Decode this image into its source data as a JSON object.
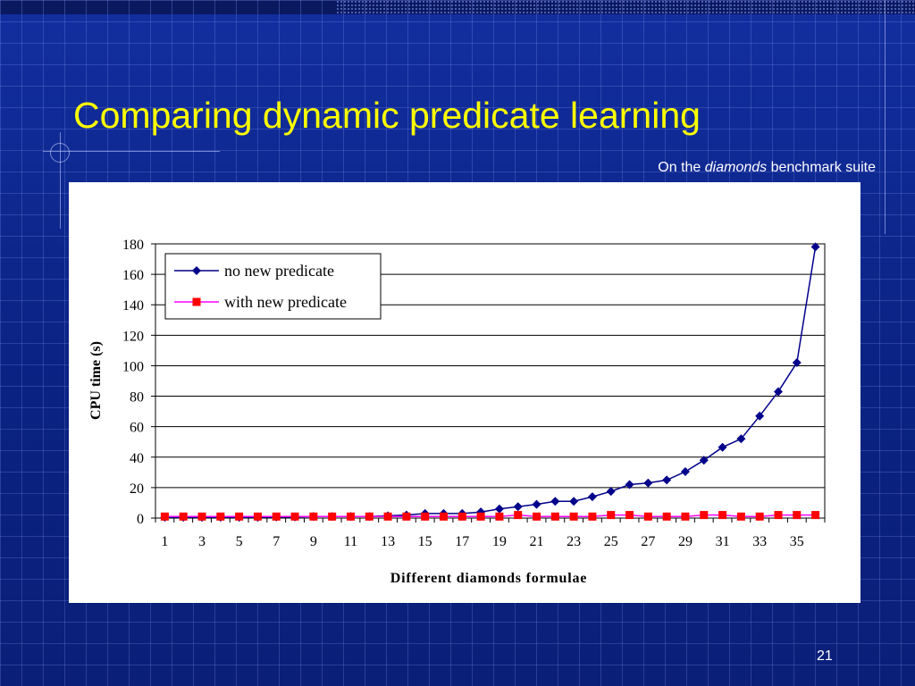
{
  "slide": {
    "title": "Comparing dynamic predicate learning",
    "subtitle_pre": "On the ",
    "subtitle_em": "diamonds",
    "subtitle_post": " benchmark suite",
    "page_number": "21"
  },
  "colors": {
    "background": "#0b2484",
    "title": "#ffff00",
    "series_1": "#00008b",
    "series_2_marker": "#ff0000",
    "series_2_line": "#ff00ff"
  },
  "chart_data": {
    "type": "line",
    "title": "",
    "xlabel": "Different diamonds formulae",
    "ylabel": "CPU time (s)",
    "ylim": [
      0,
      180
    ],
    "yticks": [
      0,
      20,
      40,
      60,
      80,
      100,
      120,
      140,
      160,
      180
    ],
    "xticks": [
      1,
      3,
      5,
      7,
      9,
      11,
      13,
      15,
      17,
      19,
      21,
      23,
      25,
      27,
      29,
      31,
      33,
      35
    ],
    "x": [
      1,
      2,
      3,
      4,
      5,
      6,
      7,
      8,
      9,
      10,
      11,
      12,
      13,
      14,
      15,
      16,
      17,
      18,
      19,
      20,
      21,
      22,
      23,
      24,
      25,
      26,
      27,
      28,
      29,
      30,
      31,
      32,
      33,
      34,
      35,
      36
    ],
    "grid": "horizontal",
    "legend": "top-left",
    "series": [
      {
        "name": "no new predicate",
        "marker": "diamond",
        "values": [
          0.5,
          0.5,
          0.5,
          0.5,
          0.5,
          0.5,
          0.7,
          0.7,
          1,
          1,
          1,
          1,
          1.5,
          2,
          3,
          3,
          3,
          4,
          6,
          7.5,
          9,
          11,
          11,
          14,
          17.5,
          22,
          23,
          25,
          30.5,
          38,
          46.5,
          52,
          67,
          83,
          102,
          178
        ]
      },
      {
        "name": "with new predicate",
        "marker": "square",
        "values": [
          1,
          1,
          1,
          1,
          1,
          1,
          1,
          1,
          1,
          1,
          1,
          1,
          1,
          1,
          1,
          1,
          1,
          1,
          1,
          2,
          1,
          1,
          1,
          1,
          2,
          2,
          1,
          1,
          1,
          2,
          2,
          1,
          1,
          2,
          2,
          2
        ]
      }
    ]
  }
}
